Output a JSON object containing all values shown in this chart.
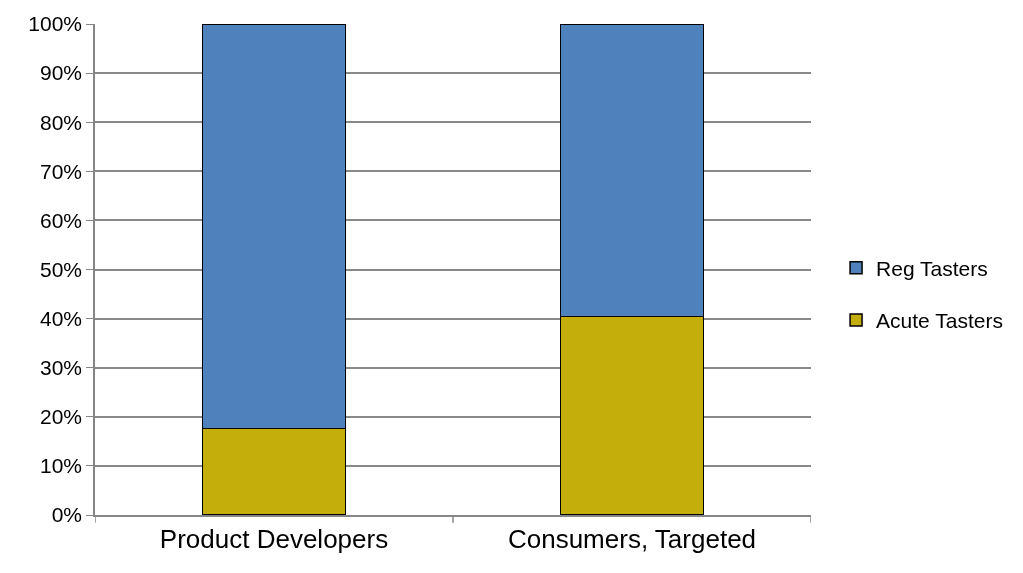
{
  "chart_data": {
    "type": "bar",
    "stacked": true,
    "categories": [
      "Product Developers",
      "Consumers, Targeted"
    ],
    "series": [
      {
        "name": "Acute Tasters",
        "color": "#c4ae0c",
        "values": [
          17.6,
          40.4
        ]
      },
      {
        "name": "Reg Tasters",
        "color": "#4f81bd",
        "values": [
          82.4,
          59.6
        ]
      }
    ],
    "ylim": [
      0,
      100
    ],
    "yticks": [
      {
        "value": 0,
        "label": "0%"
      },
      {
        "value": 10,
        "label": "10%"
      },
      {
        "value": 20,
        "label": "20%"
      },
      {
        "value": 30,
        "label": "30%"
      },
      {
        "value": 40,
        "label": "40%"
      },
      {
        "value": 50,
        "label": "50%"
      },
      {
        "value": 60,
        "label": "60%"
      },
      {
        "value": 70,
        "label": "70%"
      },
      {
        "value": 80,
        "label": "80%"
      },
      {
        "value": 90,
        "label": "90%"
      },
      {
        "value": 100,
        "label": "100%"
      }
    ],
    "grid": "y",
    "legend": "right"
  }
}
